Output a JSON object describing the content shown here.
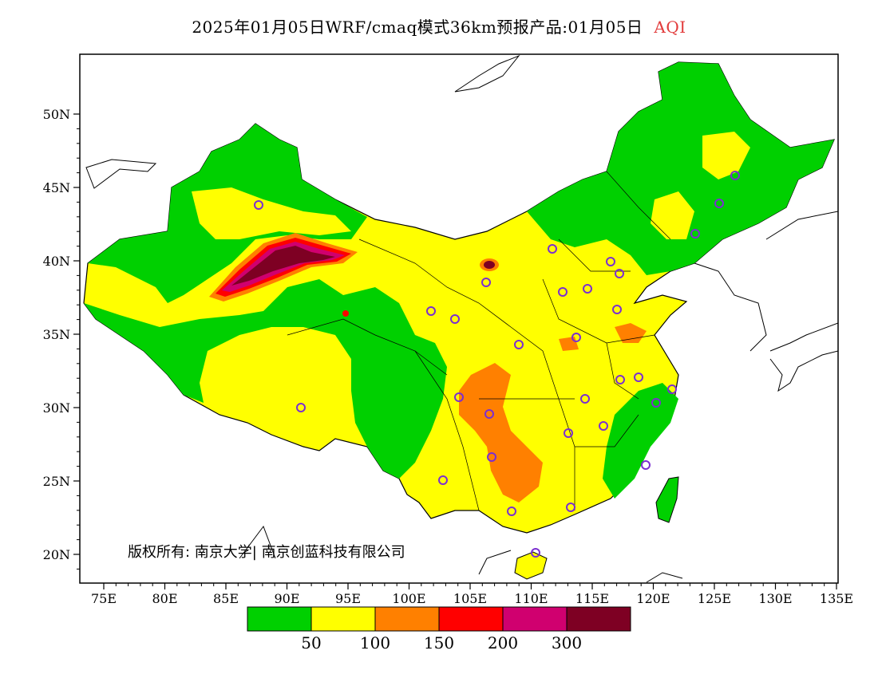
{
  "title": {
    "main": "2025年01月05日WRF/cmaq模式36km预报产品:01月05日",
    "variable": "AQI",
    "variable_color": "#e23b3b"
  },
  "axes": {
    "x_ticks": [
      "75E",
      "80E",
      "85E",
      "90E",
      "95E",
      "100E",
      "105E",
      "110E",
      "115E",
      "120E",
      "125E",
      "130E",
      "135E"
    ],
    "y_ticks": [
      "50N",
      "45N",
      "40N",
      "35N",
      "30N",
      "25N",
      "20N"
    ],
    "lon_range": [
      73,
      135
    ],
    "lat_range": [
      18,
      54
    ]
  },
  "copyright": "版权所有: 南京大学| 南京创蓝科技有限公司",
  "legend": {
    "labels": [
      "50",
      "100",
      "150",
      "200",
      "300"
    ],
    "colors": [
      "#00d000",
      "#ffff00",
      "#ff8000",
      "#ff0000",
      "#d0006f",
      "#7e0023"
    ]
  },
  "colors": {
    "green": "#00d000",
    "yellow": "#ffff00",
    "orange": "#ff8000",
    "red": "#ff0000",
    "purple": "#d0006f",
    "maroon": "#7e0023",
    "station": "#7b2fd0"
  }
}
